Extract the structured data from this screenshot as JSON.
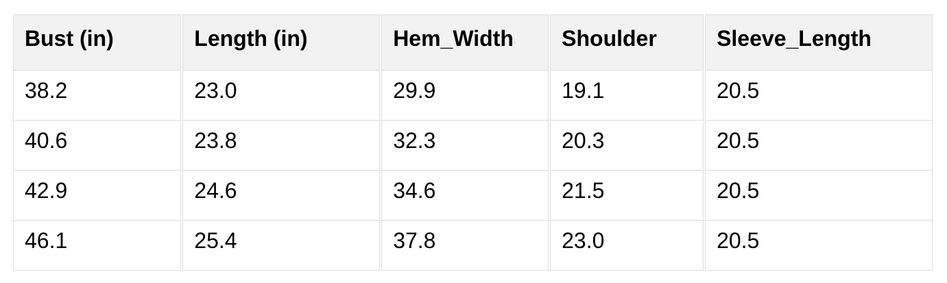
{
  "chart_data": {
    "type": "table",
    "columns": [
      "Bust (in)",
      "Length (in)",
      "Hem_Width",
      "Shoulder",
      "Sleeve_Length"
    ],
    "rows": [
      [
        "38.2",
        "23.0",
        "29.9",
        "19.1",
        "20.5"
      ],
      [
        "40.6",
        "23.8",
        "32.3",
        "20.3",
        "20.5"
      ],
      [
        "42.9",
        "24.6",
        "34.6",
        "21.5",
        "20.5"
      ],
      [
        "46.1",
        "25.4",
        "37.8",
        "23.0",
        "20.5"
      ]
    ],
    "layout": {
      "col_widths_pct": [
        18.4,
        21.6,
        18.3,
        16.8,
        24.9
      ],
      "header_style": "bold",
      "grid": true,
      "legend": false
    }
  },
  "colors": {
    "page_bg": "#ffffff",
    "header_bg": "#f2f2f2",
    "border": "#dcdcdc",
    "text": "#000000",
    "cell_bg": "#ffffff"
  }
}
